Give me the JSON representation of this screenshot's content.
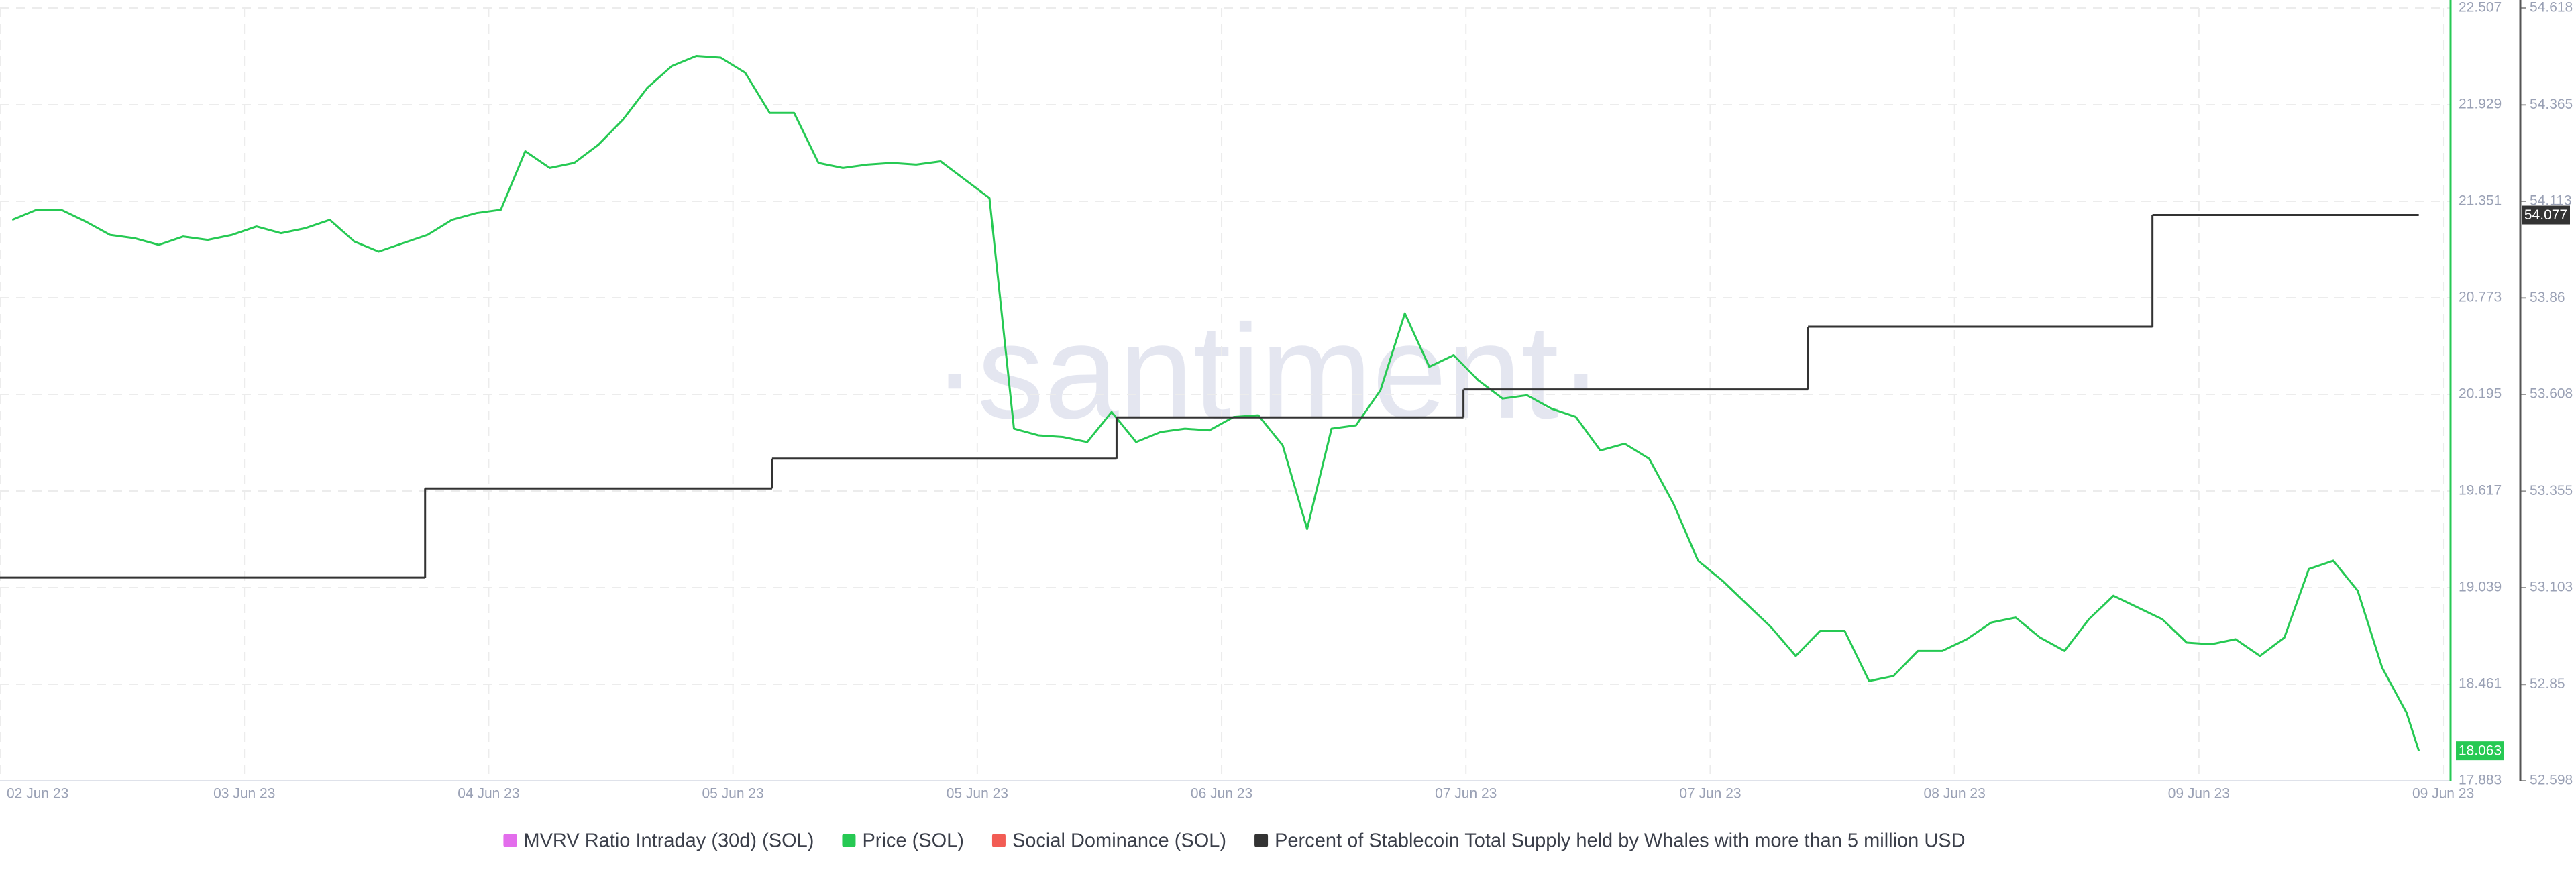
{
  "chart_data": {
    "type": "line",
    "watermark": "·santiment·",
    "xlim": [
      0,
      10.03
    ],
    "xticks": [
      {
        "value": 0,
        "label": "02 Jun 23"
      },
      {
        "value": 1,
        "label": "03 Jun 23"
      },
      {
        "value": 2,
        "label": "04 Jun 23"
      },
      {
        "value": 3,
        "label": "05 Jun 23"
      },
      {
        "value": 4,
        "label": "05 Jun 23"
      },
      {
        "value": 5,
        "label": "06 Jun 23"
      },
      {
        "value": 6,
        "label": "07 Jun 23"
      },
      {
        "value": 7,
        "label": "07 Jun 23"
      },
      {
        "value": 8,
        "label": "08 Jun 23"
      },
      {
        "value": 9,
        "label": "09 Jun 23"
      },
      {
        "value": 10,
        "label": "09 Jun 23"
      }
    ],
    "ylim": [
      17.883,
      22.507
    ],
    "yticks": [
      17.883,
      18.461,
      19.039,
      19.617,
      20.195,
      20.773,
      21.351,
      21.929,
      22.507
    ],
    "y2lim": [
      52.598,
      54.618
    ],
    "y2ticks": [
      52.598,
      52.85,
      53.103,
      53.355,
      53.608,
      53.86,
      54.113,
      54.365,
      54.618
    ],
    "grid": true,
    "series": [
      {
        "name": "MVRV Ratio Intraday (30d) (SOL)",
        "color": "#e36dec",
        "x": [],
        "values": []
      },
      {
        "name": "Price (SOL)",
        "color": "#26c953",
        "axis": "y",
        "x": [
          0.05,
          0.15,
          0.25,
          0.35,
          0.45,
          0.55,
          0.65,
          0.75,
          0.85,
          0.95,
          1.05,
          1.15,
          1.25,
          1.35,
          1.45,
          1.55,
          1.65,
          1.75,
          1.85,
          1.95,
          2.05,
          2.15,
          2.25,
          2.35,
          2.45,
          2.55,
          2.65,
          2.75,
          2.85,
          2.95,
          3.05,
          3.15,
          3.25,
          3.35,
          3.45,
          3.55,
          3.65,
          3.75,
          3.85,
          3.95,
          4.05,
          4.15,
          4.25,
          4.35,
          4.45,
          4.55,
          4.65,
          4.75,
          4.85,
          4.95,
          5.05,
          5.15,
          5.25,
          5.35,
          5.45,
          5.55,
          5.65,
          5.75,
          5.85,
          5.95,
          6.05,
          6.15,
          6.25,
          6.35,
          6.45,
          6.55,
          6.65,
          6.75,
          6.85,
          6.95,
          7.05,
          7.15,
          7.25,
          7.35,
          7.45,
          7.55,
          7.65,
          7.75,
          7.85,
          7.95,
          8.05,
          8.15,
          8.25,
          8.35,
          8.45,
          8.55,
          8.65,
          8.75,
          8.85,
          8.95,
          9.05,
          9.15,
          9.25,
          9.35,
          9.45,
          9.55,
          9.65,
          9.75,
          9.85,
          9.9
        ],
        "values": [
          21.24,
          21.3,
          21.3,
          21.23,
          21.15,
          21.13,
          21.09,
          21.14,
          21.12,
          21.15,
          21.2,
          21.16,
          21.19,
          21.24,
          21.11,
          21.05,
          21.1,
          21.15,
          21.24,
          21.28,
          21.3,
          21.65,
          21.55,
          21.58,
          21.69,
          21.84,
          22.03,
          22.16,
          22.22,
          22.21,
          22.12,
          21.88,
          21.88,
          21.58,
          21.55,
          21.57,
          21.58,
          21.57,
          21.59,
          21.48,
          21.37,
          19.99,
          19.95,
          19.94,
          19.91,
          20.09,
          19.91,
          19.97,
          19.99,
          19.98,
          20.06,
          20.07,
          19.89,
          19.39,
          19.99,
          20.01,
          20.22,
          20.68,
          20.36,
          20.43,
          20.28,
          20.17,
          20.19,
          20.11,
          20.06,
          19.86,
          19.9,
          19.81,
          19.54,
          19.2,
          19.08,
          18.94,
          18.8,
          18.63,
          18.78,
          18.78,
          18.48,
          18.51,
          18.66,
          18.66,
          18.73,
          18.83,
          18.86,
          18.74,
          18.66,
          18.85,
          18.99,
          18.92,
          18.85,
          18.71,
          18.7,
          18.73,
          18.63,
          18.74,
          19.15,
          19.2,
          19.02,
          18.56,
          18.29,
          18.063
        ]
      },
      {
        "name": "Social Dominance (SOL)",
        "color": "#f25c54",
        "x": [],
        "values": []
      },
      {
        "name": "Percent of Stablecoin Total Supply held by Whales with more than 5 million USD",
        "color": "#333333",
        "axis": "y2",
        "step": "after",
        "x": [
          0,
          1.74,
          3.16,
          4.57,
          5.99,
          7.4,
          8.81,
          9.9
        ],
        "values": [
          53.129,
          53.362,
          53.44,
          53.548,
          53.621,
          53.785,
          54.077,
          54.077
        ]
      }
    ]
  }
}
